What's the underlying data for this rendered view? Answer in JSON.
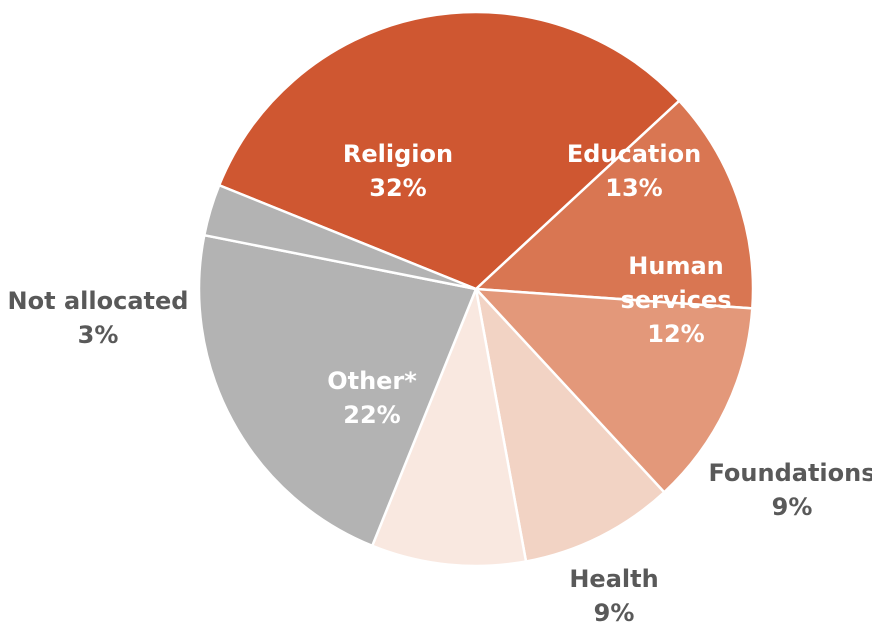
{
  "chart_data": {
    "type": "pie",
    "title": "",
    "slices": [
      {
        "name": "Religion",
        "value_label": "32%",
        "value": 32,
        "color": "#cf5731",
        "label_color": "#ffffff",
        "label_inside": true
      },
      {
        "name": "Education",
        "value_label": "13%",
        "value": 13,
        "color": "#d97652",
        "label_color": "#ffffff",
        "label_inside": true
      },
      {
        "name": "Human services",
        "value_label": "12%",
        "value": 12,
        "color": "#e3987a",
        "label_color": "#ffffff",
        "label_inside": true
      },
      {
        "name": "Foundations",
        "value_label": "9%",
        "value": 9,
        "color": "#f2d3c4",
        "label_color": "#595959",
        "label_inside": false
      },
      {
        "name": "Health",
        "value_label": "9%",
        "value": 9,
        "color": "#f9e8e0",
        "label_color": "#595959",
        "label_inside": false
      },
      {
        "name": "Other*",
        "value_label": "22%",
        "value": 22,
        "color": "#b3b3b3",
        "label_color": "#ffffff",
        "label_inside": true
      },
      {
        "name": "Not allocated",
        "value_label": "3%",
        "value": 3,
        "color": "#b3b3b3",
        "label_color": "#595959",
        "label_inside": false
      }
    ]
  }
}
